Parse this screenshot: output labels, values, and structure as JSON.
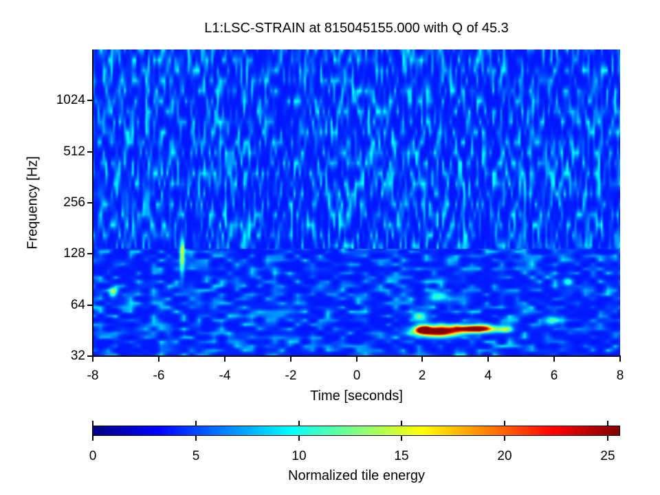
{
  "chart_data": {
    "type": "heatmap",
    "title": "L1:LSC-STRAIN at 815045155.000 with Q of 45.3",
    "xlabel": "Time [seconds]",
    "ylabel": "Frequency [Hz]",
    "xlim": [
      -8,
      8
    ],
    "ylim": [
      32,
      2048
    ],
    "yscale": "log2",
    "x_ticks": [
      -8,
      -6,
      -4,
      -2,
      0,
      2,
      4,
      6,
      8
    ],
    "x_tick_labels": [
      "-8",
      "-6",
      "-4",
      "-2",
      "0",
      "2",
      "4",
      "6",
      "8"
    ],
    "y_ticks": [
      32,
      64,
      128,
      256,
      512,
      1024
    ],
    "y_tick_labels": [
      "32",
      "64",
      "128",
      "256",
      "512",
      "1024"
    ],
    "grid": false,
    "colormap": "jet",
    "colorbar": {
      "label": "Normalized tile energy",
      "range": [
        0,
        25.6
      ],
      "ticks": [
        0,
        5,
        10,
        15,
        20,
        25
      ],
      "tick_labels": [
        "0",
        "5",
        "10",
        "15",
        "20",
        "25"
      ],
      "position": "bottom"
    },
    "background_level": "low energy (dark/medium blue, ~0-5) across the plane",
    "features": [
      {
        "description": "strong event, dark red core",
        "t_start": 1.9,
        "t_end": 2.9,
        "freq_hz": 45,
        "peak_energy": 25
      },
      {
        "description": "strong event, red elongated blob",
        "t_start": 3.1,
        "t_end": 4.1,
        "freq_hz": 46,
        "peak_energy": 22
      },
      {
        "description": "weaker cyan-yellow streak",
        "t": -5.3,
        "freq_hz_range": [
          110,
          160
        ],
        "peak_energy": 12
      },
      {
        "description": "cyan spot",
        "t": -7.4,
        "freq_hz": 75,
        "peak_energy": 9
      }
    ]
  },
  "labels": {
    "title": "L1:LSC-STRAIN at 815045155.000 with Q of 45.3",
    "xlabel": "Time [seconds]",
    "ylabel": "Frequency [Hz]",
    "cbar_title": "Normalized tile energy"
  }
}
